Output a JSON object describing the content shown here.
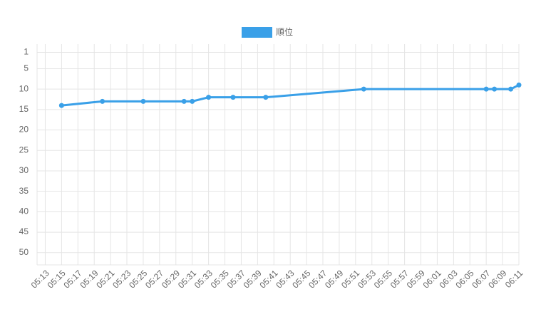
{
  "chart_data": {
    "type": "line",
    "x": [
      "05:15",
      "05:20",
      "05:25",
      "05:30",
      "05:31",
      "05:33",
      "05:36",
      "05:40",
      "05:52",
      "06:07",
      "06:08",
      "06:10",
      "06:11"
    ],
    "series": [
      {
        "name": "順位",
        "color": "#3aa0e8",
        "values": [
          14,
          13,
          13,
          13,
          13,
          12,
          12,
          12,
          10,
          10,
          10,
          10,
          9
        ]
      }
    ],
    "xlim": [
      "05:12",
      "06:11"
    ],
    "xticks": [
      "05:13",
      "05:15",
      "05:17",
      "05:19",
      "05:21",
      "05:23",
      "05:25",
      "05:27",
      "05:29",
      "05:31",
      "05:33",
      "05:35",
      "05:37",
      "05:39",
      "05:41",
      "05:43",
      "05:45",
      "05:47",
      "05:49",
      "05:51",
      "05:53",
      "05:55",
      "05:57",
      "05:59",
      "06:01",
      "06:03",
      "06:05",
      "06:07",
      "06:09",
      "06:11"
    ],
    "ylim": [
      53,
      -1
    ],
    "yticks": [
      1,
      5,
      10,
      15,
      20,
      25,
      30,
      35,
      40,
      45,
      50
    ],
    "grid": true,
    "legend": "top"
  }
}
